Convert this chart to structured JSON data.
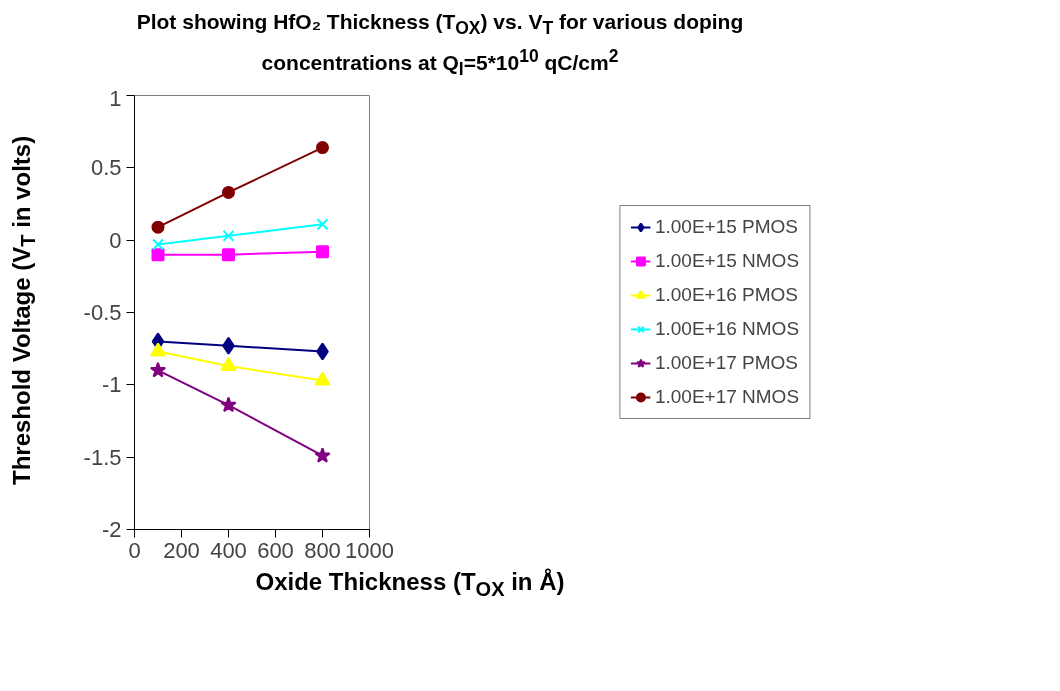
{
  "chart_data": {
    "type": "line",
    "title": "Plot showing HfO₂ Thickness (T$_{OX}$) vs. V$_{T}$ for various doping concentrations at Q$_{I}$=5*10$^{10}$ qC/cm$^{2}$",
    "xlabel": "Oxide Thickness (T$_{OX}$ in Å)",
    "ylabel": "Threshold Voltage (V$_{T}$ in volts)",
    "x": [
      100,
      400,
      800
    ],
    "series": [
      {
        "name": "1.00E+15 PMOS",
        "color": "#000080",
        "marker": "diamond",
        "values": [
          -0.7,
          -0.73,
          -0.77
        ]
      },
      {
        "name": "1.00E+15 NMOS",
        "color": "#ff00ff",
        "marker": "square",
        "values": [
          -0.1,
          -0.1,
          -0.08
        ]
      },
      {
        "name": "1.00E+16 PMOS",
        "color": "#ffff00",
        "marker": "triangle",
        "values": [
          -0.77,
          -0.87,
          -0.97
        ]
      },
      {
        "name": "1.00E+16 NMOS",
        "color": "#00ffff",
        "marker": "cross",
        "values": [
          -0.03,
          0.03,
          0.11
        ]
      },
      {
        "name": "1.00E+17 PMOS",
        "color": "#800080",
        "marker": "star",
        "values": [
          -0.9,
          -1.14,
          -1.49
        ]
      },
      {
        "name": "1.00E+17 NMOS",
        "color": "#800000",
        "marker": "circle",
        "values": [
          0.09,
          0.33,
          0.64
        ]
      }
    ],
    "xlim": [
      0,
      1000
    ],
    "xticks": [
      0,
      200,
      400,
      600,
      800,
      1000
    ],
    "ylim": [
      -2,
      1
    ],
    "yticks": [
      -2,
      -1.5,
      -1,
      -0.5,
      0,
      0.5,
      1
    ],
    "grid": false,
    "legend": "right",
    "line_style": "solid"
  }
}
